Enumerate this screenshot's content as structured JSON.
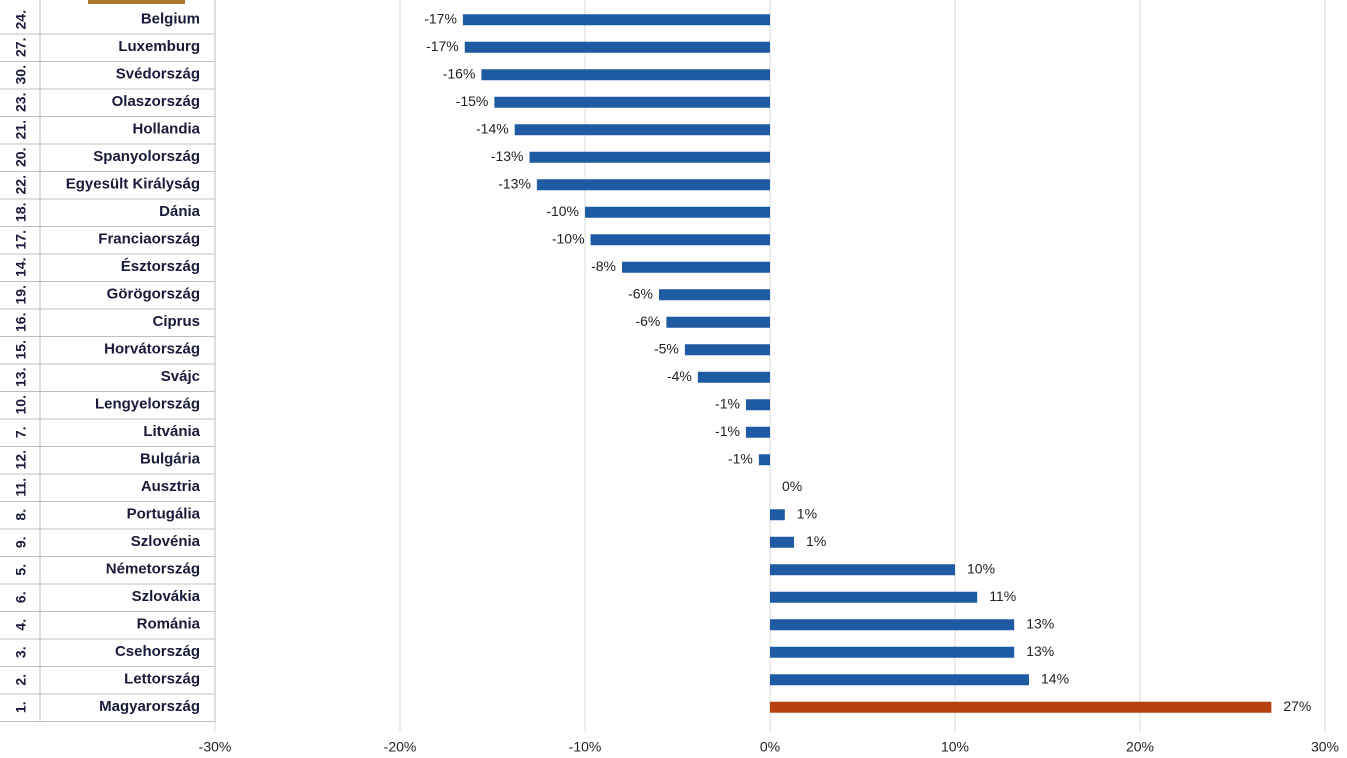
{
  "chart_data": {
    "type": "hbar",
    "ranks": [
      "24.",
      "27.",
      "30.",
      "23.",
      "21.",
      "20.",
      "22.",
      "18.",
      "17.",
      "14.",
      "19.",
      "16.",
      "15.",
      "13.",
      "10.",
      "7.",
      "12.",
      "11.",
      "8.",
      "9.",
      "5.",
      "6.",
      "4.",
      "3.",
      "2.",
      "1."
    ],
    "categories": [
      "Belgium",
      "Luxemburg",
      "Svédország",
      "Olaszország",
      "Hollandia",
      "Spanyolország",
      "Egyesült Királyság",
      "Dánia",
      "Franciaország",
      "Észtország",
      "Görögország",
      "Ciprus",
      "Horvátország",
      "Svájc",
      "Lengyelország",
      "Litvánia",
      "Bulgária",
      "Ausztria",
      "Portugália",
      "Szlovénia",
      "Németország",
      "Szlovákia",
      "Románia",
      "Csehország",
      "Lettország",
      "Magyarország"
    ],
    "values": [
      -16.6,
      -16.5,
      -15.6,
      -14.9,
      -13.8,
      -13.0,
      -12.6,
      -10.0,
      -9.7,
      -8.0,
      -6.0,
      -5.6,
      -4.6,
      -3.9,
      -1.3,
      -1.3,
      -0.6,
      0,
      0.8,
      1.3,
      10.0,
      11.2,
      13.2,
      13.2,
      14.0,
      27.1
    ],
    "value_labels": [
      "-17%",
      "-17%",
      "-16%",
      "-15%",
      "-14%",
      "-13%",
      "-13%",
      "-10%",
      "-10%",
      "-8%",
      "-6%",
      "-6%",
      "-5%",
      "-4%",
      "-1%",
      "-1%",
      "-1%",
      "0%",
      "1%",
      "1%",
      "10%",
      "11%",
      "13%",
      "13%",
      "14%",
      "27%"
    ],
    "colors": [
      "#1f5ba3",
      "#1f5ba3",
      "#1f5ba3",
      "#1f5ba3",
      "#1f5ba3",
      "#1f5ba3",
      "#1f5ba3",
      "#1f5ba3",
      "#1f5ba3",
      "#1f5ba3",
      "#1f5ba3",
      "#1f5ba3",
      "#1f5ba3",
      "#1f5ba3",
      "#1f5ba3",
      "#1f5ba3",
      "#1f5ba3",
      "#1f5ba3",
      "#1f5ba3",
      "#1f5ba3",
      "#1f5ba3",
      "#1f5ba3",
      "#1f5ba3",
      "#1f5ba3",
      "#1f5ba3",
      "#b5420e"
    ],
    "xlim": [
      -30,
      30
    ],
    "xticks": [
      {
        "value": -30,
        "label": "-30%"
      },
      {
        "value": -20,
        "label": "-20%"
      },
      {
        "value": -10,
        "label": "-10%"
      },
      {
        "value": 0,
        "label": "0%"
      },
      {
        "value": 10,
        "label": "10%"
      },
      {
        "value": 20,
        "label": "20%"
      },
      {
        "value": 30,
        "label": "30%"
      }
    ],
    "grid": true
  }
}
